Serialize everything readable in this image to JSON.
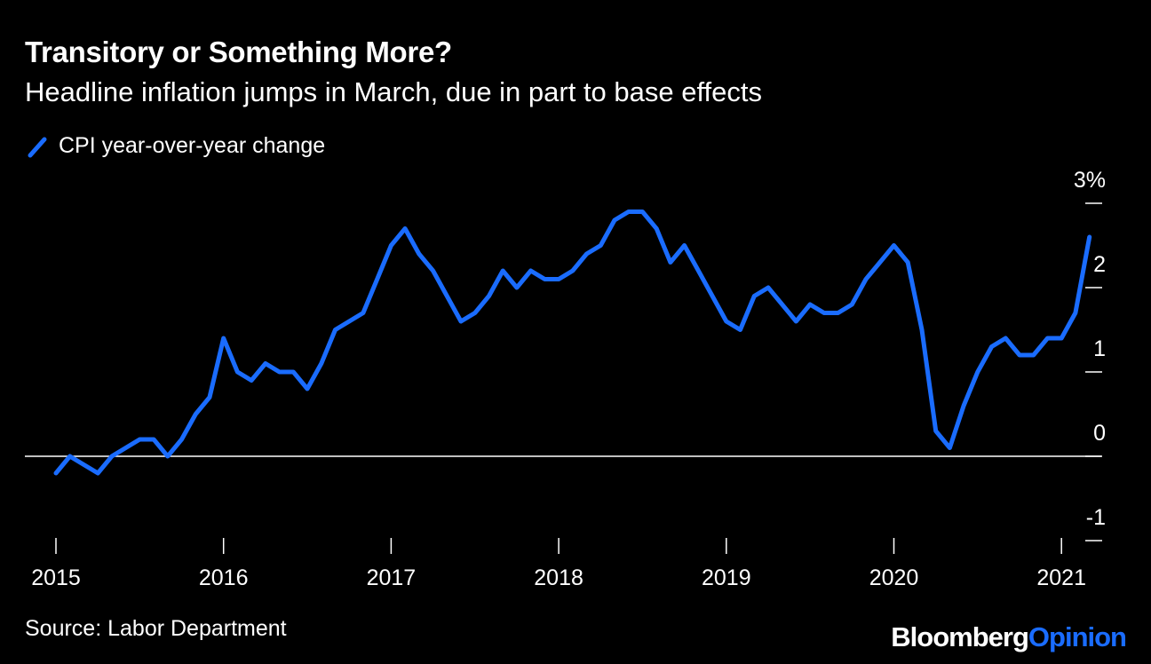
{
  "title": "Transitory or Something More?",
  "subtitle": "Headline inflation jumps in March, due in part to base effects",
  "source": "Source: Labor Department",
  "brand": {
    "part1": "Bloomberg",
    "part2": "Opinion",
    "color_part2": "#1a6cff"
  },
  "chart_data": {
    "type": "line",
    "title": "Transitory or Something More?",
    "subtitle": "Headline inflation jumps in March, due in part to base effects",
    "ylabel": "",
    "xlabel": "",
    "ylim": [
      -1,
      3
    ],
    "y_ticks": [
      3,
      2,
      1,
      0,
      -1
    ],
    "y_tick_labels": [
      "3%",
      "2",
      "1",
      "0",
      "-1"
    ],
    "x_ticks": [
      "2015",
      "2016",
      "2017",
      "2018",
      "2019",
      "2020",
      "2021"
    ],
    "grid": false,
    "zero_line": true,
    "legend_position": "top-left",
    "line_color": "#1a6cff",
    "series": [
      {
        "name": "CPI year-over-year change",
        "start": "2015-01",
        "frequency": "monthly",
        "values": [
          -0.2,
          0.0,
          -0.1,
          -0.2,
          0.0,
          0.1,
          0.2,
          0.2,
          0.0,
          0.2,
          0.5,
          0.7,
          1.4,
          1.0,
          0.9,
          1.1,
          1.0,
          1.0,
          0.8,
          1.1,
          1.5,
          1.6,
          1.7,
          2.1,
          2.5,
          2.7,
          2.4,
          2.2,
          1.9,
          1.6,
          1.7,
          1.9,
          2.2,
          2.0,
          2.2,
          2.1,
          2.1,
          2.2,
          2.4,
          2.5,
          2.8,
          2.9,
          2.9,
          2.7,
          2.3,
          2.5,
          2.2,
          1.9,
          1.6,
          1.5,
          1.9,
          2.0,
          1.8,
          1.6,
          1.8,
          1.7,
          1.7,
          1.8,
          2.1,
          2.3,
          2.5,
          2.3,
          1.5,
          0.3,
          0.1,
          0.6,
          1.0,
          1.3,
          1.4,
          1.2,
          1.2,
          1.4,
          1.4,
          1.7,
          2.6
        ]
      }
    ]
  }
}
